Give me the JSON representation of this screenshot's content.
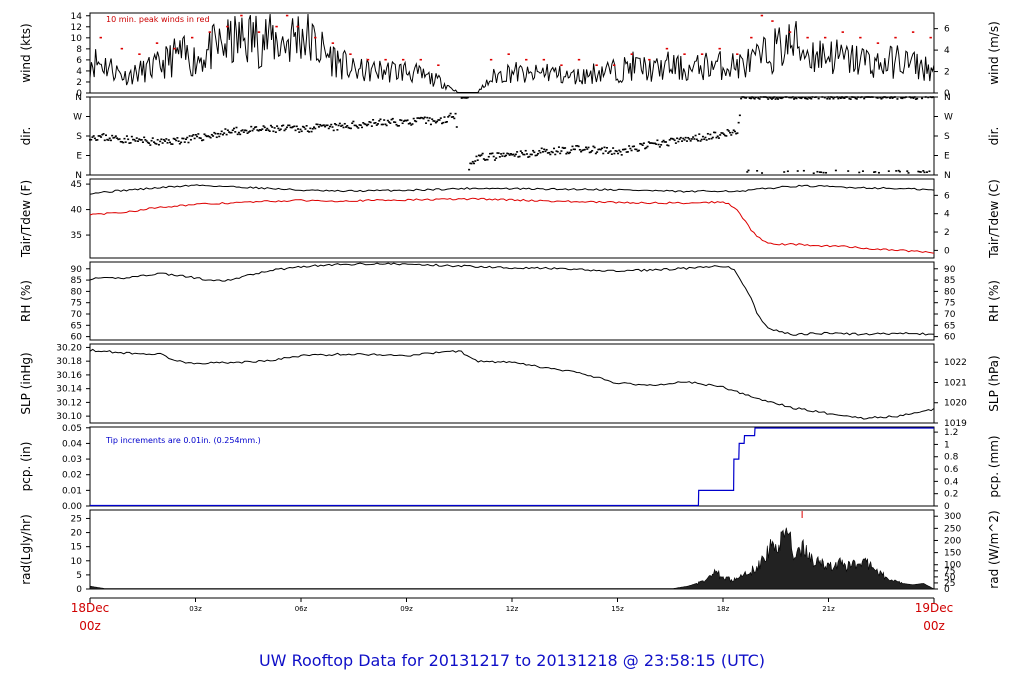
{
  "title": "UW Rooftop Data for 20131217  to  20131218 @ 23:58:15  (UTC)",
  "x_axis": {
    "ticks": [
      "03z",
      "06z",
      "09z",
      "12z",
      "15z",
      "18z",
      "21z"
    ],
    "start": {
      "line1": "18Dec",
      "line2": "00z"
    },
    "end": {
      "line1": "19Dec",
      "line2": "00z"
    }
  },
  "panels": [
    {
      "id": "wind",
      "left_label": "wind (kts)",
      "right_label": "wind (m/s)",
      "left_ticks": [
        "0",
        "2",
        "4",
        "6",
        "8",
        "10",
        "12",
        "14"
      ],
      "left_range": [
        0,
        14.5
      ],
      "right_ticks": [
        "0",
        "2",
        "4",
        "6"
      ],
      "right_range": [
        0,
        7.46
      ],
      "note": "10 min. peak winds in red",
      "note_color": "#cc0000"
    },
    {
      "id": "dir",
      "left_label": "dir.",
      "right_label": "dir.",
      "left_ticks": [
        "N",
        "E",
        "S",
        "W",
        "N"
      ],
      "left_range": [
        0,
        360
      ],
      "right_ticks": [
        "N",
        "E",
        "S",
        "W",
        "N"
      ],
      "right_range": [
        0,
        360
      ]
    },
    {
      "id": "temp",
      "left_label": "Tair/Tdew (F)",
      "right_label": "Tair/Tdew (C)",
      "left_ticks": [
        "35",
        "40",
        "45"
      ],
      "left_range": [
        30.5,
        46
      ],
      "right_ticks": [
        "0",
        "2",
        "4",
        "6"
      ],
      "right_range": [
        -0.83,
        7.78
      ]
    },
    {
      "id": "rh",
      "left_label": "RH (%)",
      "right_label": "RH (%)",
      "left_ticks": [
        "60",
        "65",
        "70",
        "75",
        "80",
        "85",
        "90"
      ],
      "left_range": [
        58.5,
        93
      ],
      "right_ticks": [
        "60",
        "65",
        "70",
        "75",
        "80",
        "85",
        "90"
      ],
      "right_range": [
        58.5,
        93
      ]
    },
    {
      "id": "slp",
      "left_label": "SLP (inHg)",
      "right_label": "SLP (hPa)",
      "left_ticks": [
        "30.10",
        "30.12",
        "30.14",
        "30.16",
        "30.18",
        "30.20"
      ],
      "left_range": [
        30.09,
        30.205
      ],
      "right_ticks": [
        "1019",
        "1020",
        "1021",
        "1022"
      ],
      "right_range": [
        1019.0,
        1022.9
      ]
    },
    {
      "id": "pcp",
      "left_label": "pcp. (in)",
      "right_label": "pcp. (mm)",
      "left_ticks": [
        "0.00",
        "0.01",
        "0.02",
        "0.03",
        "0.04",
        "0.05"
      ],
      "left_range": [
        0,
        0.0505
      ],
      "right_ticks": [
        "0",
        "0.2",
        "0.4",
        "0.6",
        "0.8",
        "1",
        "1.2"
      ],
      "right_range": [
        0,
        1.283
      ],
      "note": "Tip increments are 0.01in. (0.254mm.)",
      "note_color": "#0000cc"
    },
    {
      "id": "rad",
      "left_label": "rad(Lgly/hr)",
      "right_label": "rad (W/m^2)",
      "left_ticks": [
        "0",
        "5",
        "10",
        "15",
        "20",
        "25"
      ],
      "left_range": [
        0,
        28
      ],
      "right_ticks": [
        "0",
        "25",
        "50",
        "75",
        "100",
        "150",
        "200",
        "250",
        "300"
      ],
      "right_range": [
        0,
        325.6
      ]
    }
  ],
  "colors": {
    "line": "#000000",
    "peak": "#dd0000",
    "dewpoint": "#dd0000",
    "precip": "#0000cc",
    "title": "#1010c8",
    "time_label": "#cc0000"
  },
  "chart_data": {
    "type": "line",
    "x_unit": "hours UTC since 18Dec 00z",
    "x_range": [
      0,
      24
    ],
    "series": [
      {
        "panel": "wind",
        "name": "wind",
        "x": [
          0,
          0.5,
          1,
          1.5,
          2,
          2.5,
          3,
          3.5,
          4,
          4.5,
          5,
          5.5,
          6,
          6.5,
          7,
          7.5,
          8,
          8.5,
          9,
          9.5,
          10,
          10.5,
          11,
          11.5,
          12,
          12.5,
          13,
          13.5,
          14,
          14.5,
          15,
          15.5,
          16,
          16.5,
          17,
          17.5,
          18,
          18.5,
          19,
          19.5,
          20,
          20.5,
          21,
          21.5,
          22,
          22.5,
          23,
          23.5,
          24
        ],
        "y": [
          6,
          5,
          3,
          4,
          5,
          7,
          6,
          8,
          9,
          10,
          10,
          9,
          11,
          8,
          6,
          4,
          4,
          4,
          4,
          3,
          2,
          0,
          0,
          3,
          4,
          3,
          4,
          3,
          3,
          4,
          4,
          5,
          4,
          5,
          4,
          5,
          5,
          5,
          6,
          8,
          9,
          7,
          7,
          6,
          6,
          5,
          6,
          5,
          4
        ]
      },
      {
        "panel": "wind",
        "name": "10 min. peak winds",
        "x": [
          0.3,
          0.9,
          1.4,
          1.9,
          2.4,
          2.9,
          3.4,
          3.9,
          4.3,
          4.8,
          5.3,
          5.6,
          5.9,
          6.4,
          6.9,
          7.4,
          7.9,
          8.4,
          8.9,
          9.4,
          9.9,
          11.4,
          11.9,
          12.4,
          12.9,
          13.4,
          13.9,
          14.4,
          14.9,
          15.4,
          15.9,
          16.4,
          16.9,
          17.4,
          17.9,
          18.4,
          18.8,
          19.1,
          19.4,
          19.9,
          20.4,
          20.9,
          21.4,
          21.9,
          22.4,
          22.9,
          23.4,
          23.9
        ],
        "y": [
          10,
          8,
          7,
          9,
          8,
          10,
          11,
          12,
          14,
          11,
          12,
          14,
          12,
          10,
          9,
          7,
          6,
          6,
          6,
          6,
          5,
          6,
          7,
          6,
          6,
          5,
          6,
          5,
          5,
          7,
          6,
          8,
          7,
          7,
          8,
          7,
          10,
          14,
          13,
          11,
          10,
          10,
          11,
          10,
          9,
          10,
          11,
          10
        ]
      },
      {
        "panel": "dir",
        "name": "dir.",
        "x": [
          0,
          1,
          2,
          3,
          4,
          5,
          6,
          7,
          8,
          9,
          9.5,
          10,
          10.4,
          10.6,
          11,
          12,
          13,
          14,
          15,
          16,
          17,
          18,
          18.4,
          18.6,
          19,
          20,
          21,
          22,
          23,
          24
        ],
        "y": [
          180,
          165,
          150,
          170,
          200,
          210,
          215,
          220,
          240,
          245,
          250,
          250,
          280,
          5,
          80,
          90,
          110,
          120,
          105,
          140,
          165,
          190,
          200,
          350,
          355,
          355,
          355,
          355,
          355,
          355
        ]
      },
      {
        "panel": "temp",
        "name": "Tair",
        "x": [
          0,
          1,
          2,
          3,
          4,
          5,
          6,
          7,
          8,
          9,
          10,
          11,
          12,
          13,
          14,
          15,
          16,
          17,
          18,
          18.5,
          19,
          19.5,
          20,
          20.5,
          21,
          21.5,
          22,
          22.5,
          23,
          23.5,
          24
        ],
        "y": [
          43.2,
          43.8,
          44.3,
          44.8,
          44.5,
          44.2,
          43.8,
          43.6,
          43.7,
          43.8,
          44.0,
          44.2,
          44.1,
          44.0,
          44.0,
          43.9,
          43.7,
          43.5,
          43.7,
          43.5,
          44.0,
          44.3,
          44.6,
          44.6,
          44.5,
          44.4,
          44.3,
          44.2,
          44.1,
          44.0,
          43.8
        ]
      },
      {
        "panel": "temp",
        "name": "Tdew",
        "x": [
          0,
          1,
          2,
          3,
          4,
          5,
          6,
          7,
          8,
          9,
          10,
          11,
          12,
          13,
          14,
          15,
          16,
          17,
          18,
          18.2,
          18.4,
          18.6,
          18.8,
          19,
          19.3,
          19.6,
          20,
          20.5,
          21,
          21.5,
          22,
          22.5,
          23,
          23.5,
          24
        ],
        "y": [
          39,
          39.5,
          40.5,
          41,
          41.3,
          41.6,
          41.8,
          41.7,
          41.8,
          41.9,
          42,
          42.1,
          41.9,
          41.7,
          41.5,
          41.4,
          41.3,
          41.3,
          41.5,
          41,
          40,
          38,
          36,
          34.5,
          33.5,
          33.2,
          33.2,
          33,
          32.8,
          32.8,
          32.4,
          32.2,
          32.0,
          31.8,
          31.5
        ]
      },
      {
        "panel": "rh",
        "name": "RH",
        "x": [
          0,
          1,
          2,
          2.5,
          3,
          3.5,
          4,
          5,
          6,
          7,
          8,
          9,
          10,
          11,
          12,
          13,
          14,
          15,
          16,
          17,
          18,
          18.3,
          18.5,
          18.8,
          19,
          19.3,
          19.6,
          20,
          21,
          22,
          23,
          24
        ],
        "y": [
          85.5,
          86,
          88,
          87,
          86,
          84.5,
          85,
          89,
          91,
          91.8,
          92.3,
          92,
          91.5,
          91,
          90.5,
          90.2,
          89.5,
          89,
          89.5,
          90.2,
          91.2,
          90,
          85,
          77,
          69,
          64,
          62,
          61,
          61.5,
          61,
          61.5,
          61
        ]
      },
      {
        "panel": "slp",
        "name": "SLP",
        "x": [
          0,
          1,
          2,
          2.5,
          3,
          4,
          5,
          6,
          7,
          8,
          9,
          10,
          10.5,
          11,
          12,
          13,
          14,
          15,
          16,
          17,
          18,
          19,
          20,
          21,
          22,
          23,
          24
        ],
        "y": [
          30.196,
          30.192,
          30.19,
          30.18,
          30.177,
          30.178,
          30.18,
          30.188,
          30.19,
          30.19,
          30.188,
          30.193,
          30.195,
          30.18,
          30.178,
          30.17,
          30.162,
          30.148,
          30.145,
          30.15,
          30.142,
          30.125,
          30.112,
          30.104,
          30.097,
          30.1,
          30.11
        ]
      },
      {
        "panel": "pcp",
        "name": "pcp.",
        "x": [
          0,
          17.3,
          17.31,
          18.3,
          18.31,
          18.45,
          18.46,
          18.6,
          18.61,
          18.9,
          18.91,
          24
        ],
        "y": [
          0,
          0,
          0.01,
          0.01,
          0.03,
          0.03,
          0.04,
          0.04,
          0.045,
          0.045,
          0.05,
          0.05
        ]
      },
      {
        "panel": "rad",
        "name": "rad",
        "x": [
          0,
          0.5,
          1,
          16.5,
          17,
          17.5,
          17.8,
          18,
          18.3,
          18.6,
          19,
          19.3,
          19.6,
          19.8,
          20,
          20.2,
          20.5,
          20.8,
          21,
          21.3,
          21.6,
          22,
          22.4,
          22.8,
          23.1,
          23.4,
          23.7,
          24
        ],
        "y": [
          1,
          0,
          0,
          0,
          1,
          3,
          6,
          4,
          3,
          5,
          8,
          14,
          17,
          26,
          10,
          15,
          11,
          9,
          8,
          9,
          8,
          10,
          6,
          3,
          2,
          1.5,
          2,
          0
        ]
      }
    ]
  }
}
